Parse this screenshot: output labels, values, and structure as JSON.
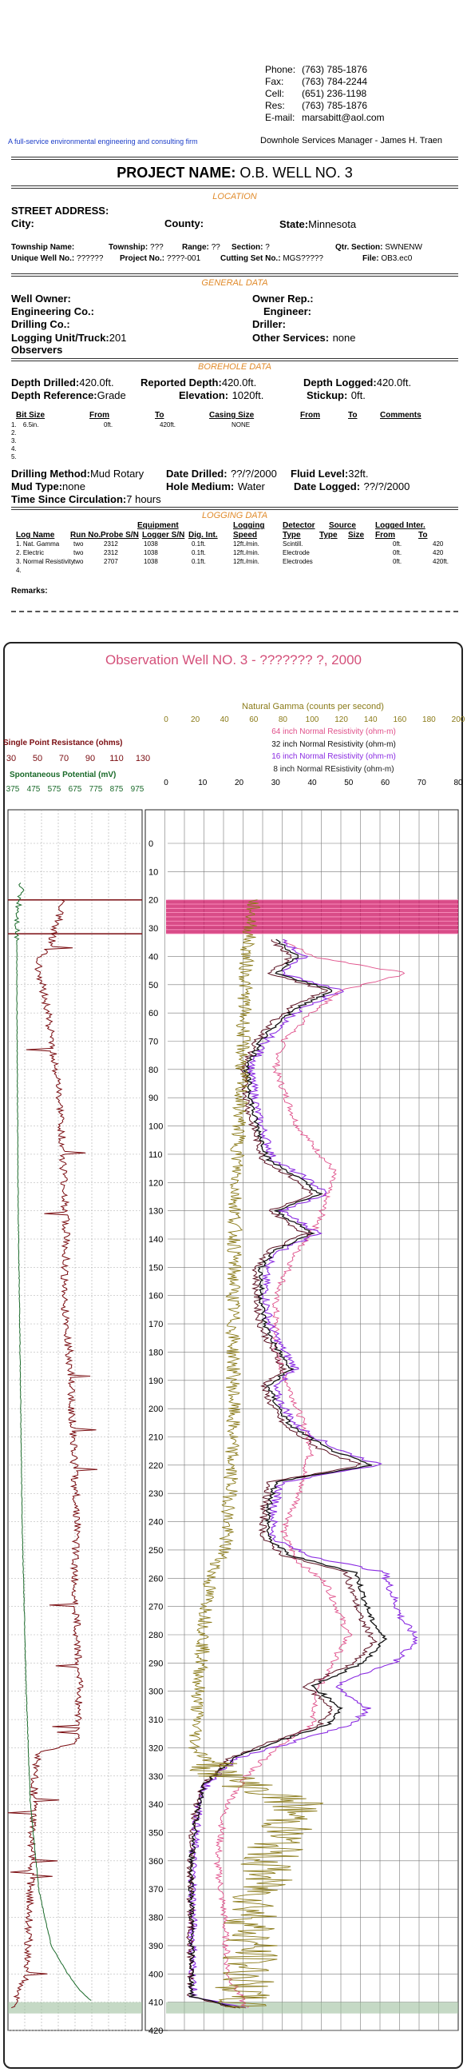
{
  "contact": {
    "phone": {
      "label": "Phone:",
      "value": "(763) 785-1876"
    },
    "fax": {
      "label": "Fax:",
      "value": "(763) 784-2244"
    },
    "cell": {
      "label": "Cell:",
      "value": "(651) 236-1198"
    },
    "res": {
      "label": "Res:",
      "value": "(763) 785-1876"
    },
    "email": {
      "label": "E-mail:",
      "value": "marsabitt@aol.com"
    }
  },
  "tagline": "A full-service environmental engineering and consulting firm",
  "manager": "Downhole Services Manager -  James H. Traen",
  "project": {
    "label": "PROJECT NAME:",
    "value": "O.B. WELL NO. 3"
  },
  "sections": {
    "location": "LOCATION",
    "general": "GENERAL DATA",
    "borehole": "BOREHOLE DATA",
    "logging": "LOGGING DATA"
  },
  "location": {
    "street_label": "STREET ADDRESS:",
    "city_label": "City:",
    "county_label": "County:",
    "state_label": "State:",
    "state_value": "Minnesota",
    "township_name_label": "Township Name:",
    "township_label": "Township:",
    "township_value": "???",
    "range_label": "Range:",
    "range_value": "??",
    "section_label": "Section:",
    "section_value": "?",
    "qtr_label": "Qtr. Section:",
    "qtr_value": "SWNENW",
    "unique_label": "Unique Well No.:",
    "unique_value": "??????",
    "projno_label": "Project No.:",
    "projno_value": "????-001",
    "cutting_label": "Cutting Set No.:",
    "cutting_value": "MGS?????",
    "file_label": "File:",
    "file_value": "OB3.ec0"
  },
  "general": {
    "well_owner": "Well Owner:",
    "owner_rep": "Owner Rep.:",
    "eng_co": "Engineering Co.:",
    "engineer": "Engineer:",
    "drill_co": "Drilling Co.:",
    "driller": "Driller:",
    "logging_unit_label": "Logging Unit/Truck:",
    "logging_unit_value": "201",
    "other_label": "Other Services:",
    "other_value": "none",
    "observers": "Observers"
  },
  "borehole": {
    "depth_drilled_label": "Depth Drilled:",
    "depth_drilled_value": "420.0ft.",
    "reported_label": "Reported Depth:",
    "reported_value": "420.0ft.",
    "logged_label": "Depth Logged:",
    "logged_value": "420.0ft.",
    "ref_label": "Depth Reference:",
    "ref_value": "Grade",
    "elev_label": "Elevation:",
    "elev_value": "1020ft.",
    "stickup_label": "Stickup:",
    "stickup_value": "0ft.",
    "table_headers": [
      "Bit Size",
      "From",
      "To",
      "Casing Size",
      "From",
      "To",
      "Comments"
    ],
    "rows": [
      [
        "1.",
        "6.5in.",
        "0ft.",
        "420ft.",
        "NONE"
      ],
      [
        "2."
      ],
      [
        "3."
      ],
      [
        "4."
      ],
      [
        "5."
      ]
    ],
    "method_label": "Drilling Method:",
    "method_value": "Mud Rotary",
    "date_drilled_label": "Date Drilled:",
    "date_drilled_value": "??/?/2000",
    "fluid_label": "Fluid Level:",
    "fluid_value": "32ft.",
    "mud_label": "Mud Type:",
    "mud_value": "none",
    "hole_label": "Hole Medium:",
    "hole_value": "Water",
    "date_logged_label": "Date Logged:",
    "date_logged_value": "??/?/2000",
    "circ_label": "Time Since Circulation:",
    "circ_value": "7 hours"
  },
  "logging": {
    "group_headers": {
      "equipment": "Equipment",
      "logging": "Logging",
      "detector": "Detector",
      "source": "Source",
      "logged_inter": "Logged Inter."
    },
    "headers": [
      "Log Name",
      "Run No.",
      "Probe S/N",
      "Logger S/N",
      "Dig. Int.",
      "Speed",
      "Type",
      "Type",
      "Size",
      "From",
      "To"
    ],
    "rows": [
      [
        "1. Nat. Gamma",
        "two",
        "2312",
        "1038",
        "0.1ft.",
        "12ft./min.",
        "Scintill.",
        "",
        "",
        "0ft.",
        "420"
      ],
      [
        "2. Electric",
        "two",
        "2312",
        "1038",
        "0.1ft.",
        "12ft./min.",
        "Electrode",
        "",
        "",
        "0ft.",
        "420"
      ],
      [
        "3. Normal Resistivity",
        "two",
        "2707",
        "1038",
        "0.1ft.",
        "12ft./min.",
        "Electrodes",
        "",
        "",
        "0ft.",
        "420ft."
      ],
      [
        "4."
      ]
    ],
    "remarks": "Remarks:"
  },
  "log_plot": {
    "title": "Observation Well NO. 3 - ??????? ?, 2000",
    "gamma_label": "Natural Gamma (counts per second)",
    "gamma_ticks": [
      "0",
      "20",
      "40",
      "60",
      "80",
      "100",
      "120",
      "140",
      "160",
      "180",
      "200"
    ],
    "res64_label": "64 inch Normal Resistivity (ohm-m)",
    "res32_label": "32 inch Normal Resistivity (ohm-m)",
    "res16_label": "16 inch Normal Resistivity (ohm-m)",
    "res8_label": "8 inch Normal REsistivity (ohm-m)",
    "res_ticks": [
      "0",
      "10",
      "20",
      "30",
      "40",
      "50",
      "60",
      "70",
      "80"
    ],
    "spr_label": "Single Point Resistance (ohms)",
    "spr_ticks": [
      "30",
      "50",
      "70",
      "90",
      "110",
      "130"
    ],
    "sp_label": "Spontaneous Potential (mV)",
    "sp_ticks": [
      "375",
      "475",
      "575",
      "675",
      "775",
      "875",
      "975"
    ],
    "depths": [
      "0",
      "10",
      "20",
      "30",
      "40",
      "50",
      "60",
      "70",
      "80",
      "90",
      "100",
      "110",
      "120",
      "130",
      "140",
      "150",
      "160",
      "170",
      "180",
      "190",
      "200",
      "210",
      "220",
      "230",
      "240",
      "250",
      "260",
      "270",
      "280",
      "290",
      "300",
      "310",
      "320",
      "330",
      "340",
      "350",
      "360",
      "370",
      "380",
      "390",
      "400",
      "410",
      "420"
    ],
    "colors": {
      "gamma": "#8a7a18",
      "res64": "#e0508a",
      "res32": "#111111",
      "res16": "#8a2be2",
      "res8": "#5a1020",
      "spr": "#7a0c10",
      "sp": "#1a6a2a",
      "casing": "#cc1060"
    }
  }
}
